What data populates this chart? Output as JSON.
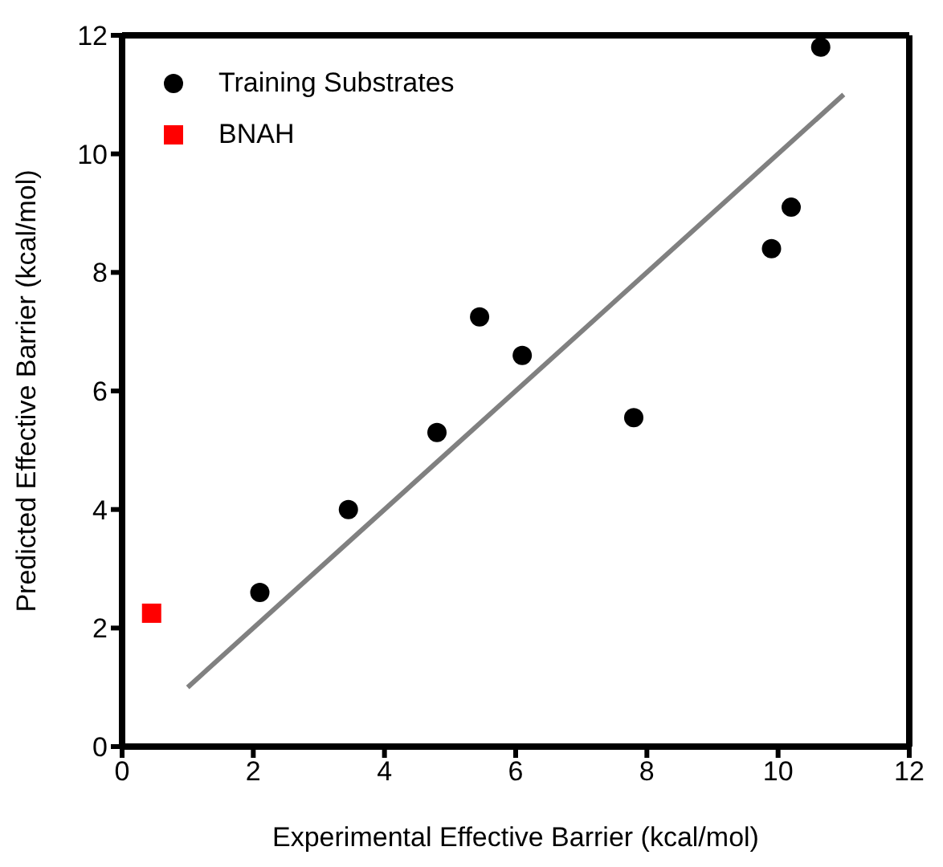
{
  "chart_data": {
    "type": "scatter",
    "xlabel": "Experimental Effective Barrier (kcal/mol)",
    "ylabel": "Predicted Effective Barrier (kcal/mol)",
    "xlim": [
      0,
      12
    ],
    "xticks": [
      0,
      2,
      4,
      6,
      8,
      10,
      12
    ],
    "ylim": [
      0,
      12
    ],
    "yticks": [
      0,
      2,
      4,
      6,
      8,
      10,
      12
    ],
    "legend": "top left",
    "series": [
      {
        "name": "Training Substrates",
        "color": "#000000",
        "marker": "circle",
        "x": [
          2.1,
          3.45,
          4.8,
          5.45,
          6.1,
          7.8,
          9.9,
          10.2,
          10.65
        ],
        "values": [
          2.6,
          4.0,
          5.3,
          7.25,
          6.6,
          5.55,
          8.4,
          9.1,
          11.8
        ]
      },
      {
        "name": "BNAH",
        "color": "#ff0000",
        "marker": "square",
        "x": [
          0.45
        ],
        "values": [
          2.25
        ]
      },
      {
        "type": "line",
        "color": "#808080",
        "marker": "none",
        "x": [
          1,
          11
        ],
        "values": [
          1,
          11
        ]
      }
    ]
  }
}
